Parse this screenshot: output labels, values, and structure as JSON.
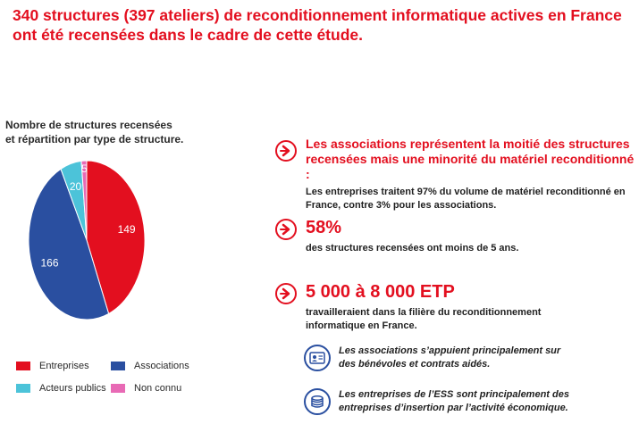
{
  "headline": {
    "line1": "340 structures (397 ateliers) de reconditionnement informatique actives en France",
    "line2": "ont été recensées dans le cadre de cette étude."
  },
  "chart_data": {
    "type": "pie",
    "title": "Nombre de structures recensées et répartition par type de structure.",
    "title_lines": [
      "Nombre de structures recensées",
      "et répartition par type de structure."
    ],
    "slices": [
      {
        "label": "Entreprises",
        "value": 149,
        "color": "#e30f1f"
      },
      {
        "label": "Associations",
        "value": 166,
        "color": "#2a4fa0"
      },
      {
        "label": "Acteurs publics",
        "value": 20,
        "color": "#4cc3d9"
      },
      {
        "label": "Non connu",
        "value": 5,
        "color": "#e86ab5"
      }
    ],
    "legend_placement": "bottom"
  },
  "highlights": [
    {
      "title_lines": [
        "Les associations représentent la moitié des structures",
        "recensées mais une minorité du matériel reconditionné :"
      ],
      "body_lines": [
        "Les entreprises traitent 97% du volume de matériel reconditionné en",
        "France, contre 3% pour les associations."
      ]
    },
    {
      "title_lines": [
        "58%"
      ],
      "body_lines": [
        "des structures recensées ont moins de 5 ans."
      ]
    },
    {
      "title_lines": [
        "5 000 à 8 000 ETP"
      ],
      "body_lines": [
        "travailleraient dans la filière du reconditionnement",
        "informatique en France."
      ]
    }
  ],
  "notes": [
    {
      "icon": "id-card-icon",
      "lines": [
        "Les associations s’appuient principalement sur",
        "des bénévoles et contrats aidés."
      ]
    },
    {
      "icon": "coins-icon",
      "lines": [
        "Les entreprises de l’ESS sont principalement des",
        "entreprises d’insertion par l’activité économique."
      ]
    }
  ],
  "colors": {
    "accent_red": "#e30f1f",
    "accent_blue": "#2a4fa0"
  }
}
